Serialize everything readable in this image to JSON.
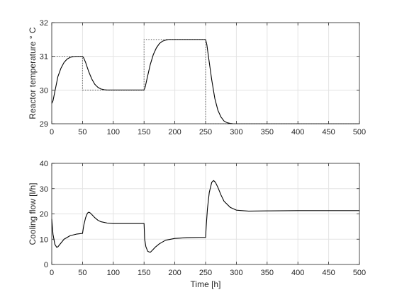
{
  "chart_data": [
    {
      "type": "line",
      "title": "",
      "xlabel": "",
      "ylabel": "Reactor temperature ° C",
      "xlim": [
        0,
        500
      ],
      "ylim": [
        29,
        32
      ],
      "xticks": [
        0,
        50,
        100,
        150,
        200,
        250,
        300,
        350,
        400,
        450,
        500
      ],
      "yticks": [
        29,
        30,
        31,
        32
      ],
      "grid": true,
      "series": [
        {
          "style": "solid",
          "color": "#000000",
          "x": [
            0,
            2,
            5,
            10,
            15,
            20,
            25,
            30,
            35,
            40,
            45,
            50,
            52,
            55,
            60,
            65,
            70,
            75,
            80,
            85,
            90,
            100,
            120,
            140,
            150,
            152,
            155,
            160,
            165,
            170,
            175,
            180,
            185,
            190,
            200,
            220,
            240,
            250,
            252,
            255,
            260,
            265,
            270,
            275,
            280,
            285,
            290,
            295,
            300,
            310,
            320,
            500
          ],
          "y": [
            29.6,
            29.68,
            29.95,
            30.4,
            30.65,
            30.82,
            30.92,
            30.97,
            30.99,
            31.0,
            31.0,
            31.0,
            30.95,
            30.82,
            30.55,
            30.33,
            30.17,
            30.08,
            30.03,
            30.01,
            30.0,
            30.0,
            30.0,
            30.0,
            30.0,
            30.1,
            30.35,
            30.75,
            31.05,
            31.25,
            31.38,
            31.45,
            31.48,
            31.5,
            31.5,
            31.5,
            31.5,
            31.5,
            31.35,
            30.95,
            30.3,
            29.75,
            29.4,
            29.2,
            29.08,
            29.03,
            29.01,
            29.0,
            29.0,
            29.0,
            29.0,
            29.0
          ]
        },
        {
          "style": "dotted",
          "color": "#555555",
          "x": [
            0,
            50,
            50,
            150,
            150,
            250,
            250,
            500
          ],
          "y": [
            31,
            31,
            30,
            30,
            31.5,
            31.5,
            29,
            29
          ]
        }
      ]
    },
    {
      "type": "line",
      "title": "",
      "xlabel": "Time [h]",
      "ylabel": "Cooling flow [l/h]",
      "xlim": [
        0,
        500
      ],
      "ylim": [
        0,
        40
      ],
      "xticks": [
        0,
        50,
        100,
        150,
        200,
        250,
        300,
        350,
        400,
        450,
        500
      ],
      "yticks": [
        0,
        10,
        20,
        30,
        40
      ],
      "grid": true,
      "series": [
        {
          "style": "solid",
          "color": "#000000",
          "x": [
            0,
            2,
            5,
            8,
            10,
            15,
            20,
            30,
            40,
            50,
            52,
            55,
            58,
            60,
            62,
            65,
            70,
            75,
            80,
            90,
            100,
            120,
            140,
            150,
            151,
            153,
            156,
            160,
            163,
            168,
            175,
            185,
            200,
            220,
            240,
            250,
            251,
            253,
            256,
            260,
            263,
            266,
            270,
            275,
            280,
            290,
            300,
            320,
            350,
            400,
            500
          ],
          "y": [
            18,
            12,
            8,
            6.8,
            7,
            8.5,
            10,
            11.4,
            12,
            12.3,
            15.5,
            18.5,
            20.3,
            20.7,
            20.5,
            19.8,
            18.5,
            17.5,
            16.9,
            16.4,
            16.2,
            16.2,
            16.2,
            16.2,
            10,
            7,
            5.2,
            4.8,
            5.5,
            6.8,
            8.2,
            9.6,
            10.3,
            10.6,
            10.7,
            10.7,
            15,
            22,
            28.5,
            32.5,
            33.2,
            32.5,
            30.5,
            27.5,
            25,
            22.6,
            21.5,
            21.1,
            21.2,
            21.3,
            21.3
          ]
        }
      ]
    }
  ]
}
